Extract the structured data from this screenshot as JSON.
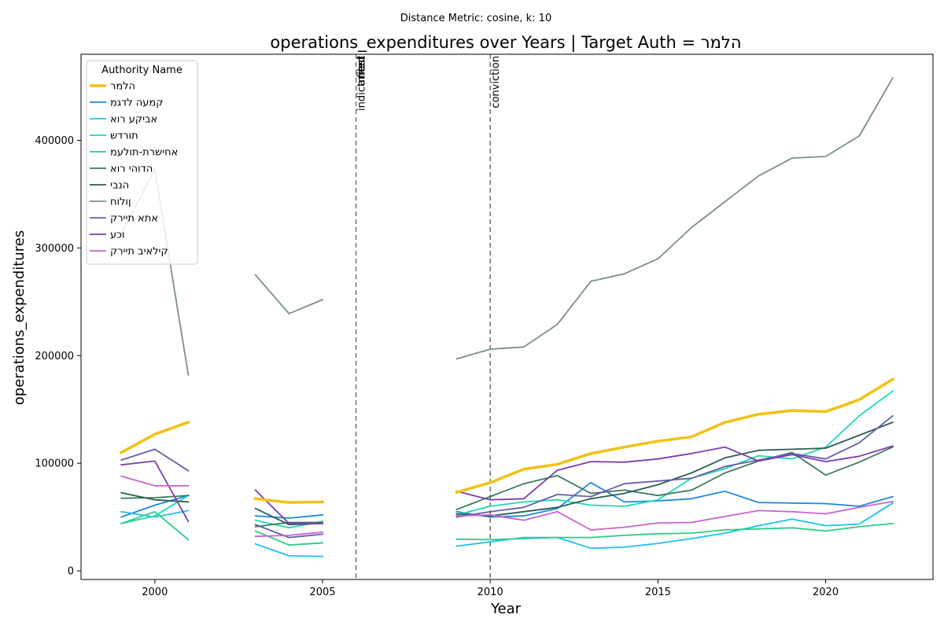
{
  "chart_data": {
    "type": "line",
    "suptitle": "Distance Metric: cosine, k: 10",
    "title": "operations_expenditures over Years | Target Auth = הלמר",
    "xlabel": "Year",
    "ylabel": "operations_expenditures",
    "xlim": [
      1997.8,
      2023.2
    ],
    "ylim": [
      -8000,
      480000
    ],
    "xticks": [
      2000,
      2005,
      2010,
      2015,
      2020
    ],
    "yticks": [
      0,
      100000,
      200000,
      300000,
      400000
    ],
    "grid": false,
    "legend": {
      "title": "Authority Name",
      "placement": "upper-left"
    },
    "events": [
      {
        "x": 2006,
        "label": "indictment"
      },
      {
        "x": 2006,
        "label": "arrest"
      },
      {
        "x": 2006,
        "label": "filed"
      },
      {
        "x": 2010,
        "label": "conviction"
      }
    ],
    "series": [
      {
        "name": "הלמר",
        "color": "#f1c21b",
        "highlight": true,
        "points": [
          [
            1999,
            110000
          ],
          [
            2000,
            127000
          ],
          [
            2001,
            138000
          ],
          [
            2003,
            67000
          ],
          [
            2004,
            63500
          ],
          [
            2005,
            64000
          ],
          [
            2009,
            73000
          ],
          [
            2010,
            82000
          ],
          [
            2011,
            94500
          ],
          [
            2012,
            99000
          ],
          [
            2013,
            109000
          ],
          [
            2014,
            115000
          ],
          [
            2015,
            120500
          ],
          [
            2016,
            124500
          ],
          [
            2017,
            138000
          ],
          [
            2018,
            145500
          ],
          [
            2019,
            149000
          ],
          [
            2020,
            148000
          ],
          [
            2021,
            159000
          ],
          [
            2022,
            178000
          ]
        ]
      },
      {
        "name": "קמעה לדגמ",
        "color": "#2188e0",
        "points": [
          [
            1999,
            50000
          ],
          [
            2000,
            61000
          ],
          [
            2001,
            70000
          ],
          [
            2003,
            51000
          ],
          [
            2004,
            49000
          ],
          [
            2005,
            52000
          ],
          [
            2009,
            55000
          ],
          [
            2010,
            50000
          ],
          [
            2011,
            51000
          ],
          [
            2012,
            58000
          ],
          [
            2013,
            82000
          ],
          [
            2014,
            64000
          ],
          [
            2015,
            65000
          ],
          [
            2016,
            67000
          ],
          [
            2017,
            74000
          ],
          [
            2018,
            63500
          ],
          [
            2019,
            63000
          ],
          [
            2020,
            62500
          ],
          [
            2021,
            60000
          ],
          [
            2022,
            69000
          ]
        ]
      },
      {
        "name": "אביקע רוא",
        "color": "#1cc2e8",
        "points": [
          [
            1999,
            55000
          ],
          [
            2000,
            50000
          ],
          [
            2001,
            56000
          ],
          [
            2003,
            25000
          ],
          [
            2004,
            14000
          ],
          [
            2005,
            13500
          ],
          [
            2009,
            23000
          ],
          [
            2010,
            27000
          ],
          [
            2011,
            31000
          ],
          [
            2012,
            31000
          ],
          [
            2013,
            21000
          ],
          [
            2014,
            22000
          ],
          [
            2015,
            25500
          ],
          [
            2016,
            30000
          ],
          [
            2017,
            35000
          ],
          [
            2018,
            42000
          ],
          [
            2019,
            48000
          ],
          [
            2020,
            42000
          ],
          [
            2021,
            43500
          ],
          [
            2022,
            63000
          ]
        ]
      },
      {
        "name": "תורדש",
        "color": "#1fd8b5",
        "points": [
          [
            1999,
            44000
          ],
          [
            2000,
            51000
          ],
          [
            2001,
            70000
          ],
          [
            2003,
            47000
          ],
          [
            2004,
            40000
          ],
          [
            2005,
            46000
          ],
          [
            2009,
            52000
          ],
          [
            2010,
            60000
          ],
          [
            2011,
            64000
          ],
          [
            2012,
            66000
          ],
          [
            2013,
            61000
          ],
          [
            2014,
            60000
          ],
          [
            2015,
            66000
          ],
          [
            2016,
            86000
          ],
          [
            2017,
            95000
          ],
          [
            2018,
            107000
          ],
          [
            2019,
            104000
          ],
          [
            2020,
            115000
          ],
          [
            2021,
            144000
          ],
          [
            2022,
            167000
          ]
        ]
      },
      {
        "name": "אחישרת-תולעמ",
        "color": "#2dcc86",
        "points": [
          [
            1999,
            44000
          ],
          [
            2000,
            55000
          ],
          [
            2001,
            29000
          ],
          [
            2003,
            37000
          ],
          [
            2004,
            24000
          ],
          [
            2005,
            26000
          ],
          [
            2009,
            29500
          ],
          [
            2010,
            29000
          ],
          [
            2011,
            30000
          ],
          [
            2012,
            31000
          ],
          [
            2013,
            31000
          ],
          [
            2014,
            33000
          ],
          [
            2015,
            34500
          ],
          [
            2016,
            35000
          ],
          [
            2017,
            38000
          ],
          [
            2018,
            39000
          ],
          [
            2019,
            40000
          ],
          [
            2020,
            37000
          ],
          [
            2021,
            41000
          ],
          [
            2022,
            44000
          ]
        ]
      },
      {
        "name": "הדוהי רוא",
        "color": "#3d7b5c",
        "points": [
          [
            1999,
            67500
          ],
          [
            2000,
            68000
          ],
          [
            2001,
            70000
          ],
          [
            2003,
            41000
          ],
          [
            2004,
            45000
          ],
          [
            2005,
            45000
          ],
          [
            2009,
            57000
          ],
          [
            2010,
            69000
          ],
          [
            2011,
            81000
          ],
          [
            2012,
            88500
          ],
          [
            2013,
            72000
          ],
          [
            2014,
            75000
          ],
          [
            2015,
            70000
          ],
          [
            2016,
            75000
          ],
          [
            2017,
            91000
          ],
          [
            2018,
            102000
          ],
          [
            2019,
            110000
          ],
          [
            2020,
            89000
          ],
          [
            2021,
            101000
          ],
          [
            2022,
            115000
          ]
        ]
      },
      {
        "name": "הנבי",
        "color": "#2f5e4e",
        "points": [
          [
            1999,
            72500
          ],
          [
            2000,
            66000
          ],
          [
            2001,
            64000
          ],
          [
            2003,
            58000
          ],
          [
            2004,
            43000
          ],
          [
            2005,
            44000
          ],
          [
            2009,
            53000
          ],
          [
            2010,
            51000
          ],
          [
            2011,
            55000
          ],
          [
            2012,
            59000
          ],
          [
            2013,
            67000
          ],
          [
            2014,
            72000
          ],
          [
            2015,
            80000
          ],
          [
            2016,
            91000
          ],
          [
            2017,
            105000
          ],
          [
            2018,
            112000
          ],
          [
            2019,
            113000
          ],
          [
            2020,
            114000
          ],
          [
            2021,
            126000
          ],
          [
            2022,
            138000
          ]
        ]
      },
      {
        "name": "ןולוח",
        "color": "#7b8f8a",
        "points": [
          [
            1999,
            313000
          ],
          [
            2000,
            373000
          ],
          [
            2001,
            182000
          ],
          [
            2003,
            275000
          ],
          [
            2004,
            239000
          ],
          [
            2005,
            252000
          ],
          [
            2009,
            197000
          ],
          [
            2010,
            206000
          ],
          [
            2011,
            208000
          ],
          [
            2012,
            229000
          ],
          [
            2013,
            269000
          ],
          [
            2014,
            276000
          ],
          [
            2015,
            290000
          ],
          [
            2016,
            319000
          ],
          [
            2017,
            343000
          ],
          [
            2018,
            367000
          ],
          [
            2019,
            383500
          ],
          [
            2020,
            385000
          ],
          [
            2021,
            404000
          ],
          [
            2022,
            458000
          ]
        ]
      },
      {
        "name": "אתא תיירק",
        "color": "#665ea8",
        "points": [
          [
            1999,
            103000
          ],
          [
            2000,
            113000
          ],
          [
            2001,
            93000
          ],
          [
            2003,
            43000
          ],
          [
            2004,
            31000
          ],
          [
            2005,
            34000
          ],
          [
            2009,
            50000
          ],
          [
            2010,
            55000
          ],
          [
            2011,
            59000
          ],
          [
            2012,
            71000
          ],
          [
            2013,
            69000
          ],
          [
            2014,
            81000
          ],
          [
            2015,
            83500
          ],
          [
            2016,
            86000
          ],
          [
            2017,
            97000
          ],
          [
            2018,
            103000
          ],
          [
            2019,
            109000
          ],
          [
            2020,
            104000
          ],
          [
            2021,
            119000
          ],
          [
            2022,
            144000
          ]
        ]
      },
      {
        "name": "וכע",
        "color": "#7b3fae",
        "points": [
          [
            1999,
            98500
          ],
          [
            2000,
            102000
          ],
          [
            2001,
            46000
          ],
          [
            2003,
            75000
          ],
          [
            2004,
            44000
          ],
          [
            2005,
            44000
          ],
          [
            2009,
            74000
          ],
          [
            2010,
            66000
          ],
          [
            2011,
            67000
          ],
          [
            2012,
            93500
          ],
          [
            2013,
            101500
          ],
          [
            2014,
            101000
          ],
          [
            2015,
            104000
          ],
          [
            2016,
            109000
          ],
          [
            2017,
            115000
          ],
          [
            2018,
            102000
          ],
          [
            2019,
            108000
          ],
          [
            2020,
            101500
          ],
          [
            2021,
            106500
          ],
          [
            2022,
            116000
          ]
        ]
      },
      {
        "name": "קילאיב תיירק",
        "color": "#c864cf",
        "points": [
          [
            1999,
            88000
          ],
          [
            2000,
            79000
          ],
          [
            2001,
            79000
          ],
          [
            2003,
            32000
          ],
          [
            2004,
            33000
          ],
          [
            2005,
            36000
          ],
          [
            2009,
            51000
          ],
          [
            2010,
            52000
          ],
          [
            2011,
            47000
          ],
          [
            2012,
            55000
          ],
          [
            2013,
            38000
          ],
          [
            2014,
            40500
          ],
          [
            2015,
            44500
          ],
          [
            2016,
            45000
          ],
          [
            2017,
            50500
          ],
          [
            2018,
            56000
          ],
          [
            2019,
            55000
          ],
          [
            2020,
            53000
          ],
          [
            2021,
            59000
          ],
          [
            2022,
            64500
          ]
        ]
      }
    ]
  }
}
